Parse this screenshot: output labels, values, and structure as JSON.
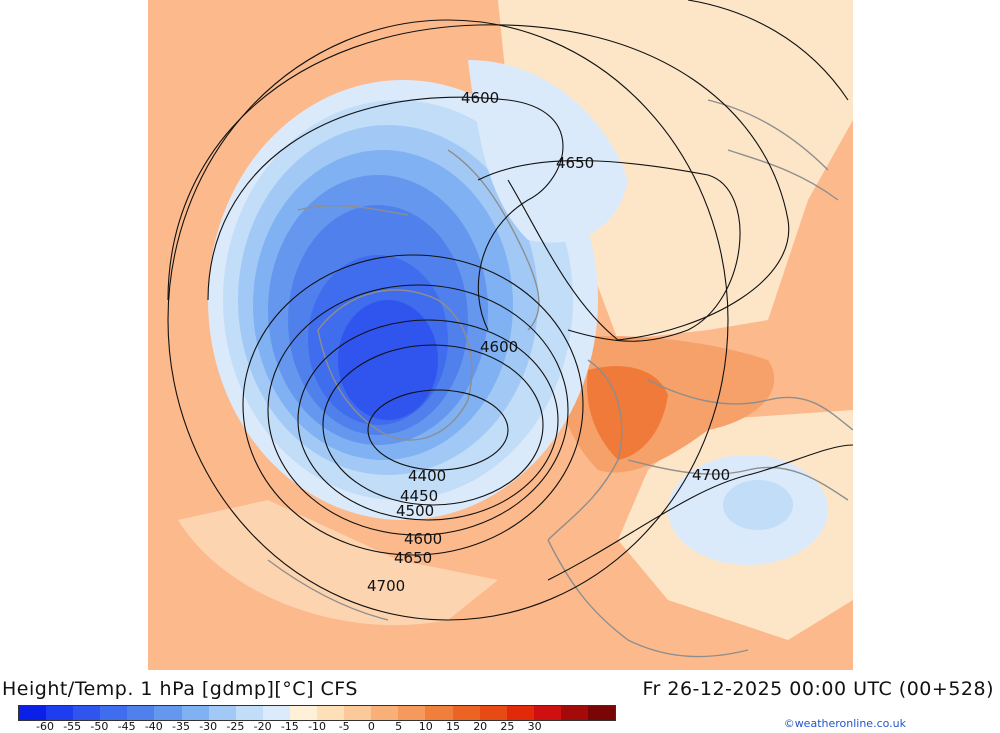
{
  "title": "Height/Temp. 1 hPa [gdmp][°C] CFS",
  "valid_time": "Fr 26-12-2025 00:00 UTC (00+528)",
  "credit": "©weatheronline.co.uk",
  "colorbar": {
    "colors": [
      "#0a1fe8",
      "#1e3df0",
      "#2f55ee",
      "#3f6ded",
      "#5080ec",
      "#6597ee",
      "#80b1f2",
      "#a2c9f6",
      "#c2ddf8",
      "#dcebfb",
      "#fff0d8",
      "#fde0b8",
      "#fcc99a",
      "#f9b078",
      "#f59a5c",
      "#f07f3c",
      "#ec6424",
      "#e84a14",
      "#e22a0a",
      "#d01010",
      "#a50a0a",
      "#7a0505"
    ],
    "tick_labels": [
      "-60",
      "-55",
      "-50",
      "-45",
      "-40",
      "-35",
      "-30",
      "-25",
      "-20",
      "-15",
      "-10",
      "-5",
      "0",
      "5",
      "10",
      "15",
      "20",
      "25",
      "30"
    ]
  },
  "contour_labels": [
    {
      "text": "4600"
    },
    {
      "text": "4650"
    },
    {
      "text": "4600"
    },
    {
      "text": "4400"
    },
    {
      "text": "4450"
    },
    {
      "text": "4500"
    },
    {
      "text": "4600"
    },
    {
      "text": "4650"
    },
    {
      "text": "4700"
    },
    {
      "text": "4700"
    }
  ]
}
